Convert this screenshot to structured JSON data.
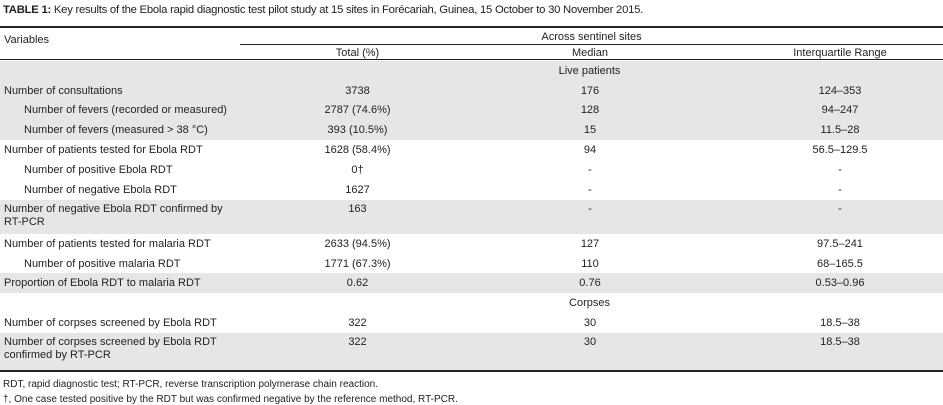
{
  "title": {
    "label": "TABLE 1:",
    "text": " Key results of the Ebola rapid diagnostic test pilot study at 15 sites in Forécariah, Guinea, 15 October to 30 November 2015."
  },
  "header": {
    "variables": "Variables",
    "group": "Across sentinel sites",
    "columns": [
      "Total (%)",
      "Median",
      "Interquartile Range"
    ]
  },
  "sections": {
    "live": "Live patients",
    "corpses": "Corpses"
  },
  "rows": [
    {
      "label": "Number of consultations",
      "total": "3738",
      "median": "176",
      "iqr": "124–353"
    },
    {
      "label": "Number of fevers (recorded or measured)",
      "total": "2787 (74.6%)",
      "median": "128",
      "iqr": "94–247"
    },
    {
      "label": "Number of fevers (measured > 38 °C)",
      "total": "393 (10.5%)",
      "median": "15",
      "iqr": "11.5–28"
    },
    {
      "label": "Number of patients tested for Ebola RDT",
      "total": "1628 (58.4%)",
      "median": "94",
      "iqr": "56.5–129.5"
    },
    {
      "label": "Number of positive Ebola RDT",
      "total": "0†",
      "median": "-",
      "iqr": "-"
    },
    {
      "label": "Number of negative Ebola RDT",
      "total": "1627",
      "median": "-",
      "iqr": "-"
    },
    {
      "label": "Number of negative Ebola RDT confirmed by RT-PCR",
      "total": "163",
      "median": "-",
      "iqr": "-"
    },
    {
      "label": "Number of patients tested for malaria RDT",
      "total": "2633 (94.5%)",
      "median": "127",
      "iqr": "97.5–241"
    },
    {
      "label": "Number of positive malaria RDT",
      "total": "1771 (67.3%)",
      "median": "110",
      "iqr": "68–165.5"
    },
    {
      "label": "Proportion of Ebola RDT to malaria RDT",
      "total": "0.62",
      "median": "0.76",
      "iqr": "0.53–0.96"
    },
    {
      "label": "Number of corpses screened by Ebola RDT",
      "total": "322",
      "median": "30",
      "iqr": "18.5–38"
    },
    {
      "label": "Number of corpses screened by Ebola RDT confirmed by RT-PCR",
      "total": "322",
      "median": "30",
      "iqr": "18.5–38"
    }
  ],
  "footnotes": [
    "RDT, rapid diagnostic test; RT-PCR, reverse transcription polymerase chain reaction.",
    "†, One case tested positive by the RDT but was confirmed negative by the reference method, RT-PCR."
  ]
}
